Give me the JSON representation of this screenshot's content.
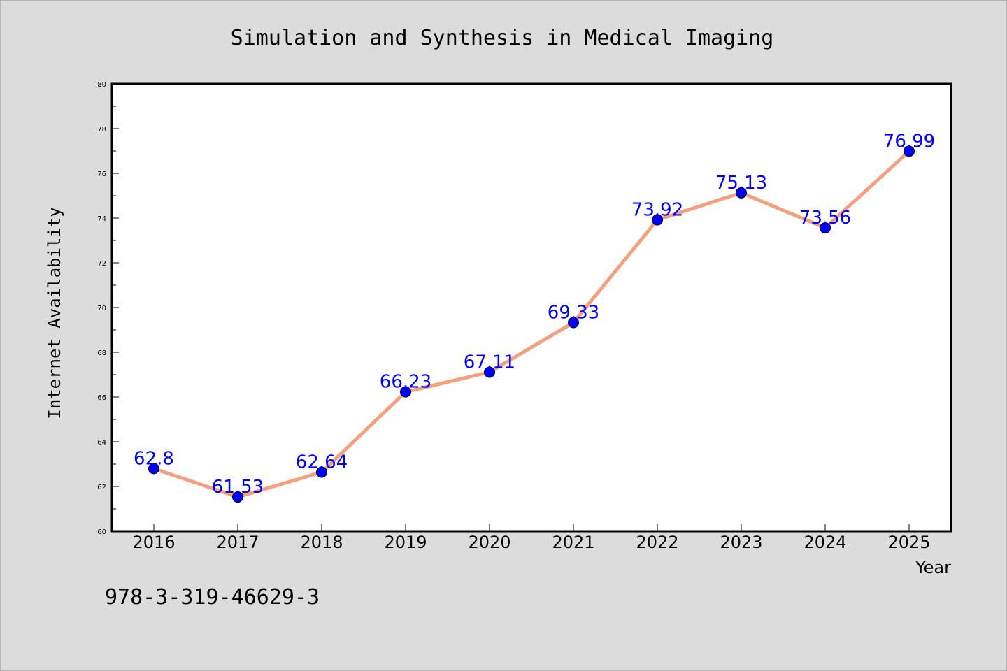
{
  "chart_data": {
    "type": "line",
    "title": "Simulation and Synthesis in Medical Imaging",
    "xlabel": "Year",
    "ylabel": "Internet Availability",
    "categories": [
      "2016",
      "2017",
      "2018",
      "2019",
      "2020",
      "2021",
      "2022",
      "2023",
      "2024",
      "2025"
    ],
    "series": [
      {
        "values": [
          62.8,
          61.53,
          62.64,
          66.23,
          67.11,
          69.33,
          73.92,
          75.13,
          73.56,
          76.99
        ],
        "labels": [
          "62.8",
          "61.53",
          "62.64",
          "66.23",
          "67.11",
          "69.33",
          "73.92",
          "75.13",
          "73.56",
          "76.99"
        ],
        "line_color": "#f4a07e",
        "marker_color": "#0000ff"
      }
    ],
    "ylim": [
      60,
      80
    ],
    "yticks": [
      "60",
      "62",
      "64",
      "66",
      "68",
      "70",
      "72",
      "74",
      "76",
      "78",
      "80"
    ],
    "grid": false,
    "legend": "none",
    "footnote": "978-3-319-46629-3"
  }
}
